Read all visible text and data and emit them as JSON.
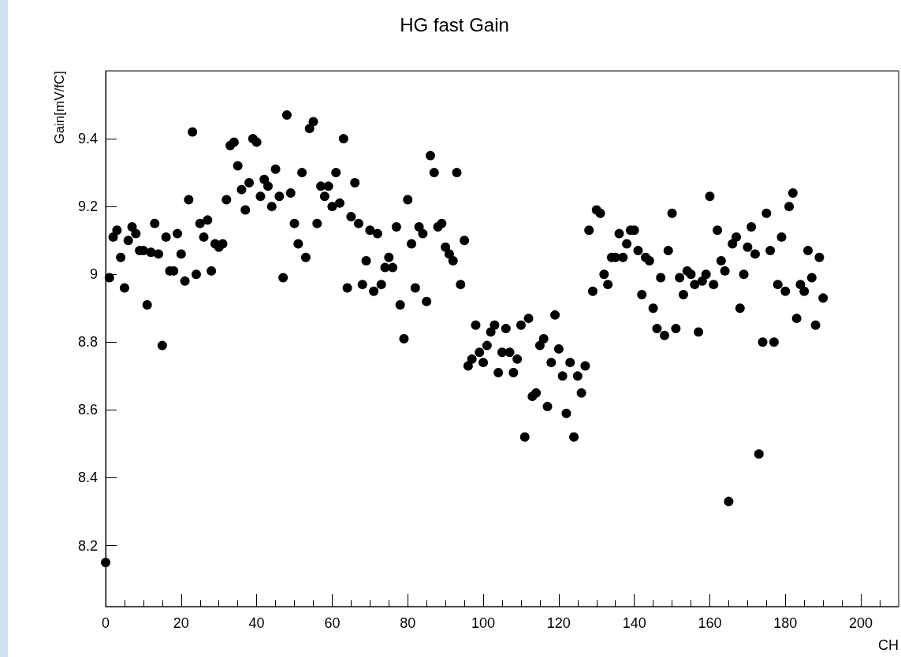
{
  "chart_data": {
    "type": "scatter",
    "title": "HG fast Gain",
    "xlabel": "CH",
    "ylabel": "Gain[mV/fC]",
    "x": [
      0,
      1,
      2,
      3,
      4,
      5,
      6,
      7,
      8,
      9,
      10,
      11,
      12,
      13,
      14,
      15,
      16,
      17,
      18,
      19,
      20,
      21,
      22,
      23,
      24,
      25,
      26,
      27,
      28,
      29,
      30,
      31,
      32,
      33,
      34,
      35,
      36,
      37,
      38,
      39,
      40,
      41,
      42,
      43,
      44,
      45,
      46,
      47,
      48,
      49,
      50,
      51,
      52,
      53,
      54,
      55,
      56,
      57,
      58,
      59,
      60,
      61,
      62,
      63,
      64,
      65,
      66,
      67,
      68,
      69,
      70,
      71,
      72,
      73,
      74,
      75,
      76,
      77,
      78,
      79,
      80,
      81,
      82,
      83,
      84,
      85,
      86,
      87,
      88,
      89,
      90,
      91,
      92,
      93,
      94,
      95,
      96,
      97,
      98,
      99,
      100,
      101,
      102,
      103,
      104,
      105,
      106,
      107,
      108,
      109,
      110,
      111,
      112,
      113,
      114,
      115,
      116,
      117,
      118,
      119,
      120,
      121,
      122,
      123,
      124,
      125,
      126,
      127,
      128,
      129,
      130,
      131,
      132,
      133,
      134,
      135,
      136,
      137,
      138,
      139,
      140,
      141,
      142,
      143,
      144,
      145,
      146,
      147,
      148,
      149,
      150,
      151,
      152,
      153,
      154,
      155,
      156,
      157,
      158,
      159,
      160,
      161,
      162,
      163,
      164,
      165,
      166,
      167,
      168,
      169,
      170,
      171,
      172,
      173,
      174,
      175,
      176,
      177,
      178,
      179,
      180,
      181,
      182,
      183,
      184,
      185,
      186,
      187,
      188,
      189,
      190
    ],
    "series": [
      {
        "color": "#000000",
        "values": [
          8.15,
          8.99,
          9.11,
          9.13,
          9.05,
          8.96,
          9.1,
          9.14,
          9.12,
          9.07,
          9.07,
          8.91,
          9.065,
          9.15,
          9.06,
          8.79,
          9.11,
          9.01,
          9.01,
          9.12,
          9.06,
          8.98,
          9.22,
          9.42,
          9.0,
          9.15,
          9.11,
          9.16,
          9.01,
          9.09,
          9.08,
          9.09,
          9.22,
          9.38,
          9.39,
          9.32,
          9.25,
          9.19,
          9.27,
          9.4,
          9.39,
          9.23,
          9.28,
          9.26,
          9.2,
          9.31,
          9.23,
          8.99,
          9.47,
          9.24,
          9.15,
          9.09,
          9.3,
          9.05,
          9.43,
          9.45,
          9.15,
          9.26,
          9.23,
          9.26,
          9.2,
          9.3,
          9.21,
          9.4,
          8.96,
          9.17,
          9.27,
          9.15,
          8.97,
          9.04,
          9.13,
          8.95,
          9.12,
          8.97,
          9.02,
          9.05,
          9.02,
          9.14,
          8.91,
          8.81,
          9.22,
          9.09,
          8.96,
          9.14,
          9.12,
          8.92,
          9.35,
          9.3,
          9.14,
          9.15,
          9.08,
          9.06,
          9.04,
          9.3,
          8.97,
          9.1,
          8.73,
          8.75,
          8.85,
          8.77,
          8.74,
          8.79,
          8.83,
          8.85,
          8.71,
          8.77,
          8.84,
          8.77,
          8.71,
          8.75,
          8.85,
          8.52,
          8.87,
          8.64,
          8.65,
          8.79,
          8.81,
          8.61,
          8.74,
          8.88,
          8.78,
          8.7,
          8.59,
          8.74,
          8.52,
          8.7,
          8.65,
          8.73,
          9.13,
          8.95,
          9.19,
          9.18,
          9.0,
          8.97,
          9.05,
          9.05,
          9.12,
          9.05,
          9.09,
          9.13,
          9.13,
          9.07,
          8.94,
          9.05,
          9.04,
          8.9,
          8.84,
          8.99,
          8.82,
          9.07,
          9.18,
          8.84,
          8.99,
          8.94,
          9.01,
          9.0,
          8.97,
          8.83,
          8.98,
          9.0,
          9.23,
          8.97,
          9.13,
          9.04,
          9.01,
          8.33,
          9.09,
          9.11,
          8.9,
          9.0,
          9.08,
          9.14,
          9.06,
          8.47,
          8.8,
          9.18,
          9.07,
          8.8,
          8.97,
          9.11,
          8.95,
          9.2,
          9.24,
          8.87,
          8.97,
          8.95,
          9.07,
          8.99,
          8.85,
          9.05,
          8.93
        ]
      }
    ],
    "xlim": [
      0,
      210
    ],
    "xticks": [
      0,
      20,
      40,
      60,
      80,
      100,
      120,
      140,
      160,
      180,
      200
    ],
    "ylim": [
      8.02,
      9.6
    ],
    "yticks": [
      8.2,
      8.4,
      8.6,
      8.8,
      9,
      9.2,
      9.4
    ],
    "marker": "circle",
    "grid": false
  }
}
